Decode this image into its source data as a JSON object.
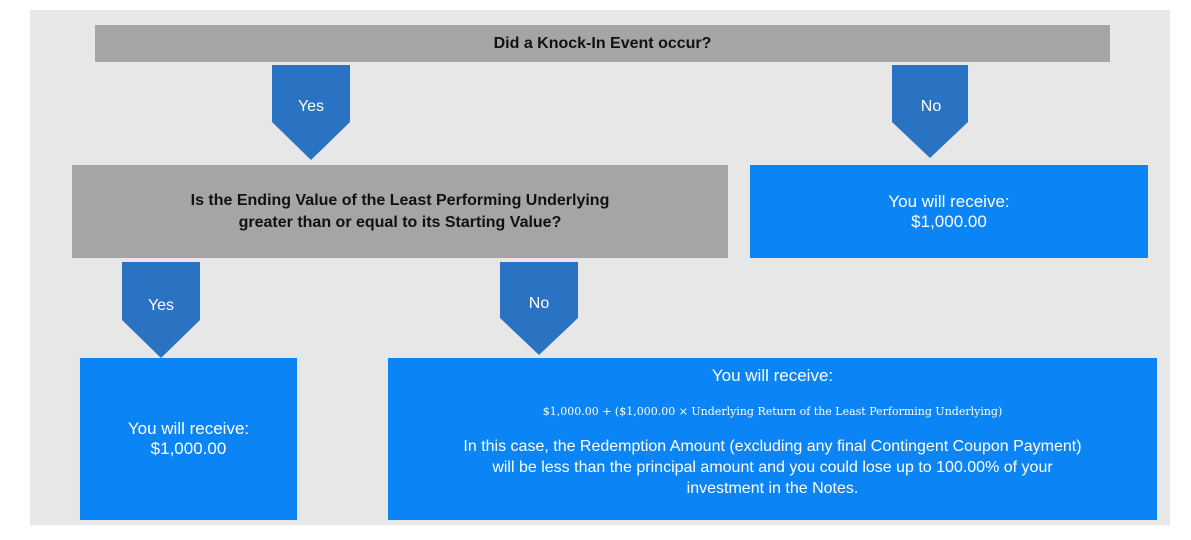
{
  "question_1": "Did a Knock-In Event occur?",
  "question_1_yes": "Yes",
  "question_1_no": "No",
  "question_2": [
    "Is the Ending Value of the Least Performing Underlying",
    "greater than or equal to its Starting Value?"
  ],
  "question_2_yes": "Yes",
  "question_2_no": "No",
  "outcome_no_knock_in": [
    "You will receive:",
    "$1,000.00"
  ],
  "outcome_yes": [
    "You will receive:",
    "$1,000.00"
  ],
  "outcome_no": {
    "heading": "You will receive:",
    "formula": "$1,000.00 + ($1,000.00 × Underlying Return of the Least Performing Underlying)",
    "note": "In this case, the Redemption Amount (excluding any final Contingent Coupon Payment) will be less than the principal amount and you could lose up to 100.00% of your investment in the Notes."
  }
}
